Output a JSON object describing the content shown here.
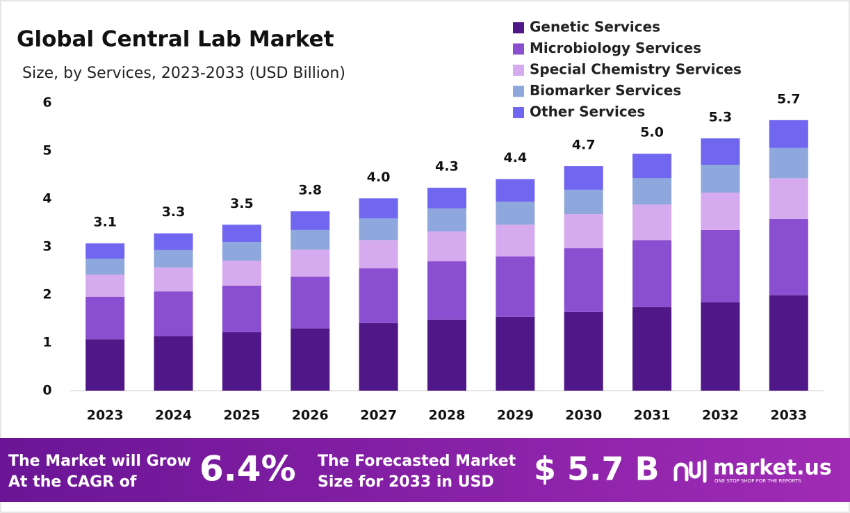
{
  "chart_data": {
    "type": "stacked-bar",
    "title": "Global Central Lab Market",
    "subtitle": "Size, by Services, 2023-2033 (USD Billion)",
    "categories": [
      "2023",
      "2024",
      "2025",
      "2026",
      "2027",
      "2028",
      "2029",
      "2030",
      "2031",
      "2032",
      "2033"
    ],
    "series": [
      {
        "name": "Genetic Services",
        "color": "#4f1787",
        "values": [
          1.07,
          1.14,
          1.22,
          1.3,
          1.41,
          1.48,
          1.54,
          1.64,
          1.74,
          1.84,
          1.99
        ]
      },
      {
        "name": "Microbiology Services",
        "color": "#8a4fd0",
        "values": [
          0.89,
          0.93,
          0.97,
          1.08,
          1.14,
          1.22,
          1.26,
          1.33,
          1.4,
          1.51,
          1.59
        ]
      },
      {
        "name": "Special Chemistry Services",
        "color": "#d6aaee",
        "values": [
          0.46,
          0.5,
          0.52,
          0.56,
          0.59,
          0.62,
          0.66,
          0.71,
          0.74,
          0.78,
          0.85
        ]
      },
      {
        "name": "Biomarker Services",
        "color": "#8ea7dc",
        "values": [
          0.33,
          0.36,
          0.39,
          0.41,
          0.45,
          0.48,
          0.48,
          0.51,
          0.55,
          0.58,
          0.63
        ]
      },
      {
        "name": "Other Services",
        "color": "#7066f0",
        "values": [
          0.32,
          0.35,
          0.36,
          0.39,
          0.42,
          0.43,
          0.47,
          0.49,
          0.51,
          0.55,
          0.58
        ]
      }
    ],
    "totals": {
      "values": [
        3.1,
        3.3,
        3.5,
        3.8,
        4.0,
        4.3,
        4.4,
        4.7,
        5.0,
        5.3,
        5.7
      ],
      "value_labels": [
        "3.1",
        "3.3",
        "3.5",
        "3.8",
        "4.0",
        "4.3",
        "4.4",
        "4.7",
        "5.0",
        "5.3",
        "5.7"
      ]
    },
    "ylim": [
      0,
      6
    ],
    "yticks": [
      0,
      1,
      2,
      3,
      4,
      5,
      6
    ],
    "grid": false
  },
  "footer": {
    "cagr_text": [
      "The Market will Grow",
      "At the CAGR of"
    ],
    "cagr_value": "6.4%",
    "forecast_text": [
      "The Forecasted Market",
      "Size for 2033 in USD"
    ],
    "forecast_value": "$ 5.7 B",
    "brand": "market.us",
    "tagline": "ONE STOP SHOP FOR THE REPORTS"
  }
}
